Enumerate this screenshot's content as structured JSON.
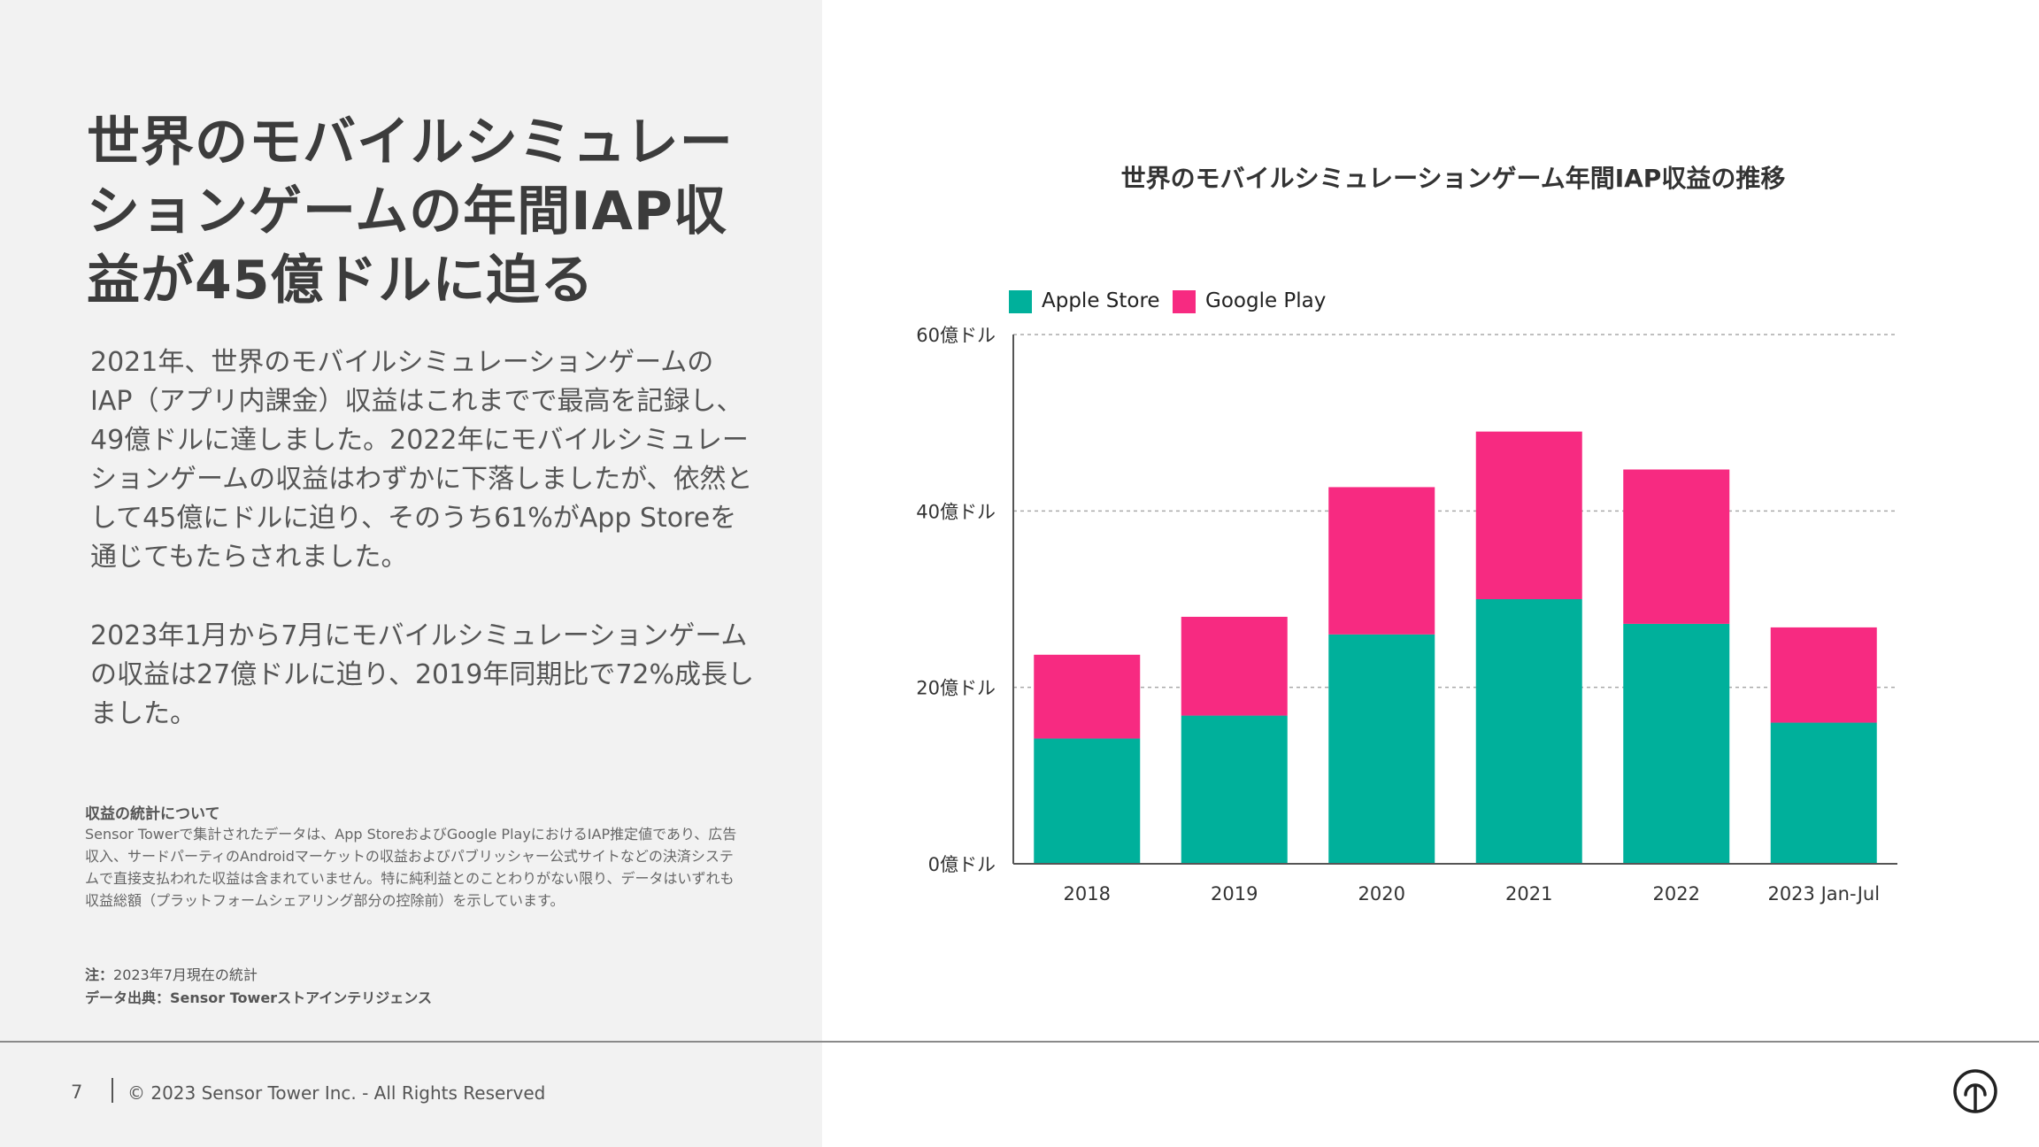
{
  "left": {
    "headline": "世界のモバイルシミュレーションゲームの年間IAP収益が45億ドルに迫る",
    "paragraph1": "2021年、世界のモバイルシミュレーションゲームのIAP（アプリ内課金）収益はこれまでで最高を記録し、49億ドルに達しました。2022年にモバイルシミュレーションゲームの収益はわずかに下落しましたが、依然として45億にドルに迫り、そのうち61%がApp Storeを通じてもたらされました。",
    "paragraph2": "2023年1月から7月にモバイルシミュレーションゲームの収益は27億ドルに迫り、2019年同期比で72%成長しました。",
    "notes_title": "収益の統計について",
    "notes_body": "Sensor Towerで集計されたデータは、App StoreおよびGoogle PlayにおけるIAP推定値であり、広告収入、サードパーティのAndroidマーケットの収益およびパブリッシャー公式サイトなどの決済システムで直接支払われた収益は含まれていません。特に純利益とのことわりがない限り、データはいずれも収益総額（プラットフォームシェアリング部分の控除前）を示しています。",
    "remark_label": "注：",
    "remark_text": "2023年7月現在の統計",
    "source_label": "データ出典：",
    "source_text": "Sensor Towerストアインテリジェンス"
  },
  "footer": {
    "page_number": "7",
    "copyright": "© 2023 Sensor Tower Inc. - All Rights Reserved"
  },
  "icons": {
    "footer_logo": "sensor-tower-logo-icon"
  },
  "chart_data": {
    "type": "bar",
    "stacked": true,
    "title": "世界のモバイルシミュレーションゲーム年間IAP収益の推移",
    "xlabel": "",
    "ylabel": "",
    "categories": [
      "2018",
      "2019",
      "2020",
      "2021",
      "2022",
      "2023 Jan-Jul"
    ],
    "series": [
      {
        "name": "Apple Store",
        "color": "#00b09b",
        "values": [
          14.2,
          16.8,
          26.0,
          30.0,
          27.2,
          16.0
        ]
      },
      {
        "name": "Google Play",
        "color": "#f72a81",
        "values": [
          9.5,
          11.2,
          16.7,
          19.0,
          17.5,
          10.8
        ]
      }
    ],
    "ylim": [
      0,
      60
    ],
    "yticks": [
      0,
      20,
      40,
      60
    ],
    "ytick_labels": [
      "0億ドル",
      "20億ドル",
      "40億ドル",
      "60億ドル"
    ],
    "grid": true,
    "legend_position": "top-left"
  }
}
